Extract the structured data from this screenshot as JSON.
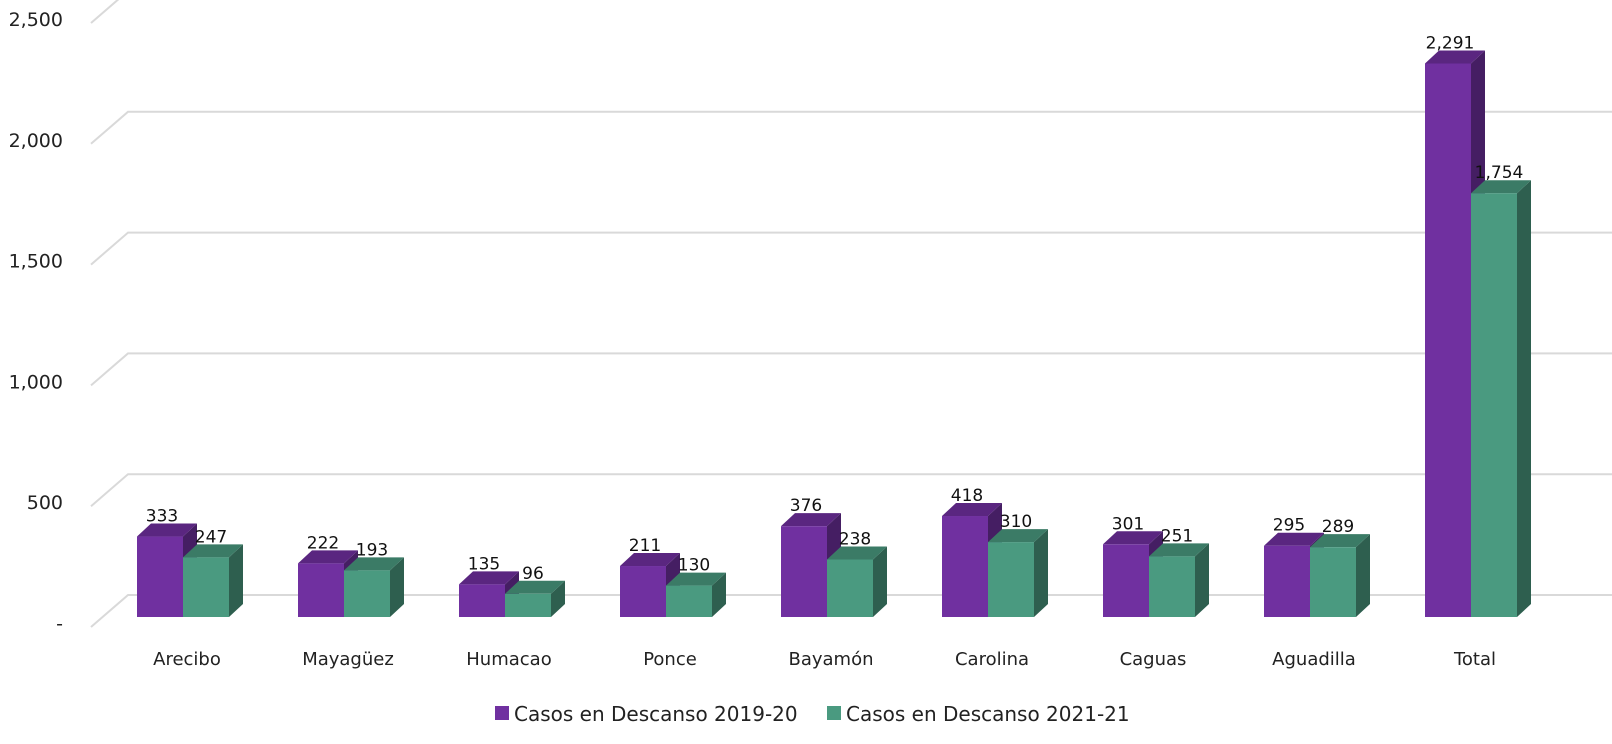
{
  "chart_data": {
    "type": "bar",
    "title": "",
    "xlabel": "",
    "ylabel": "",
    "categories": [
      "Arecibo",
      "Mayagüez",
      "Humacao",
      "Ponce",
      "Bayamón",
      "Carolina",
      "Caguas",
      "Aguadilla",
      "Total"
    ],
    "series": [
      {
        "name": "Casos en Descanso 2019-20",
        "values": [
          333,
          222,
          135,
          211,
          376,
          418,
          301,
          295,
          2291
        ],
        "color": "#7030A0"
      },
      {
        "name": "Casos en Descanso 2021-21",
        "values": [
          247,
          193,
          96,
          130,
          238,
          310,
          251,
          289,
          1754
        ],
        "color": "#4A9A80"
      }
    ],
    "ylim": [
      0,
      2500
    ],
    "yticks": [
      0,
      500,
      1000,
      1500,
      2000,
      2500
    ],
    "ytick_labels": [
      "-",
      "500",
      "1,000",
      "1,500",
      "2,000",
      "2,500"
    ],
    "data_labels": true,
    "grid": true,
    "legend_position": "bottom",
    "style": "3d-clustered-column"
  }
}
